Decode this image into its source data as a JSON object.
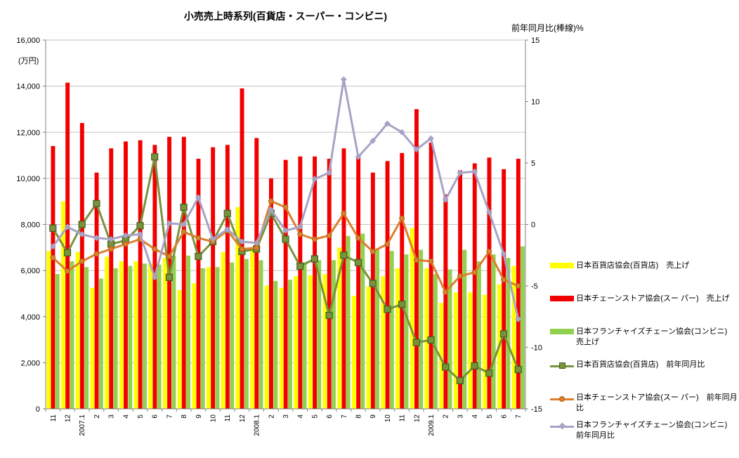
{
  "title": "小売売上時系列(百貨店・スーパー・コンビニ)",
  "right_axis_title": "前年同月比(棒線)%",
  "left_axis_unit": "(万円)",
  "colors": {
    "department_bar": "#ffff00",
    "super_bar": "#f20000",
    "convenience_bar": "#92d050",
    "department_line": "#77933c",
    "department_line_border": "#4a5e24",
    "super_line": "#de7e2e",
    "convenience_line": "#a6a3c6",
    "gridline": "#c3c3c3",
    "axis": "#808080"
  },
  "chart_data": {
    "type": "bar+line-combo",
    "categories": [
      "11",
      "12",
      "2007.1",
      "2",
      "3",
      "4",
      "5",
      "6",
      "7",
      "8",
      "9",
      "10",
      "11",
      "12",
      "2008.1",
      "2",
      "3",
      "4",
      "5",
      "6",
      "7",
      "8",
      "9",
      "10",
      "11",
      "12",
      "2009.1",
      "2",
      "3",
      "4",
      "5",
      "6",
      "7"
    ],
    "left_axis": {
      "min": 0,
      "max": 16000,
      "step": 2000,
      "tick_labels": [
        "0",
        "2,000",
        "4,000",
        "6,000",
        "8,000",
        "10,000",
        "12,000",
        "14,000",
        "16,000"
      ]
    },
    "right_axis": {
      "min": -15,
      "max": 15,
      "step": 5,
      "tick_labels": [
        "-15",
        "-10",
        "-5",
        "0",
        "5",
        "10",
        "15"
      ]
    },
    "bar_series": [
      {
        "name": "日本百貨店協会(百貨店)　売上げ",
        "color": "#ffff00",
        "values": [
          6850,
          9000,
          6800,
          5250,
          6600,
          6400,
          6400,
          6300,
          6550,
          5150,
          5450,
          6150,
          6800,
          8750,
          6950,
          5350,
          5250,
          5750,
          5800,
          5850,
          7000,
          4900,
          5300,
          5750,
          6100,
          7850,
          6100,
          4600,
          5050,
          5050,
          4950,
          5400,
          6200
        ]
      },
      {
        "name": "日本チェーンストア協会(スー パー)　売上げ",
        "color": "#f20000",
        "values": [
          11400,
          14150,
          12400,
          10250,
          11300,
          11600,
          11650,
          11450,
          11800,
          11800,
          10850,
          11350,
          11450,
          13900,
          11750,
          10000,
          10800,
          10950,
          10950,
          10850,
          11300,
          11000,
          10250,
          10750,
          11100,
          13000,
          11550,
          9300,
          10350,
          10650,
          10900,
          10400,
          10850
        ]
      },
      {
        "name": "日本フランチャイズチェーン協会(コンビニ)　売上げ",
        "color": "#92d050",
        "values": [
          5850,
          6400,
          6150,
          5650,
          6100,
          6200,
          6300,
          6250,
          6650,
          6650,
          6100,
          6150,
          6350,
          6500,
          6450,
          5550,
          5600,
          6350,
          6450,
          6450,
          7500,
          7600,
          6900,
          6850,
          6700,
          6900,
          5850,
          6050,
          6900,
          6400,
          6700,
          6550,
          7050
        ]
      }
    ],
    "line_series": [
      {
        "name": "日本百貨店協会(百貨店)　前年同月比",
        "color": "#77933c",
        "marker": "square",
        "values": [
          -0.3,
          -2.3,
          0,
          1.7,
          -1.6,
          -1.3,
          -0.1,
          5.5,
          -4.3,
          1.4,
          -2.6,
          -1.4,
          0.9,
          -2.2,
          -2,
          0.9,
          -1.2,
          -3.4,
          -2.8,
          -7.4,
          -2.5,
          -3.1,
          -4.8,
          -6.9,
          -6.5,
          -9.6,
          -9.4,
          -11.6,
          -12.7,
          -11.5,
          -12.1,
          -8.9,
          -11.8
        ]
      },
      {
        "name": "日本チェーンストア協会(スー パー)　前年同月比",
        "color": "#de7e2e",
        "marker": "circle",
        "values": [
          -2.7,
          -3.8,
          -3,
          -2.4,
          -2,
          -1.6,
          -1.2,
          -2,
          -2.6,
          -0.6,
          -1.1,
          -1.4,
          -0.5,
          -2,
          -1.9,
          1.9,
          1.4,
          -0.8,
          -1.2,
          -0.9,
          0.9,
          -1.1,
          -2.2,
          -1.6,
          0.5,
          -2.9,
          -3,
          -5.5,
          -4.2,
          -3.9,
          -2.2,
          -4.5,
          -5
        ]
      },
      {
        "name": "日本フランチャイズチェーン協会(コンビニ)　前年同月比",
        "color": "#a6a3c6",
        "marker": "diamond",
        "values": [
          -1.8,
          -0.2,
          -0.8,
          -1.1,
          -1.2,
          -0.9,
          -0.8,
          -4.3,
          0.1,
          0,
          2.2,
          -1.2,
          -0.4,
          -1.4,
          -1.5,
          1.2,
          -0.5,
          -0.2,
          3.7,
          4.2,
          11.8,
          5.5,
          6.8,
          8.2,
          7.5,
          6.1,
          7,
          2,
          4.2,
          4.3,
          1,
          -2.4,
          -7.7
        ]
      }
    ],
    "legend_position": "right",
    "grid": true
  },
  "legend_tops": [
    371,
    418,
    465,
    512,
    559,
    598
  ]
}
